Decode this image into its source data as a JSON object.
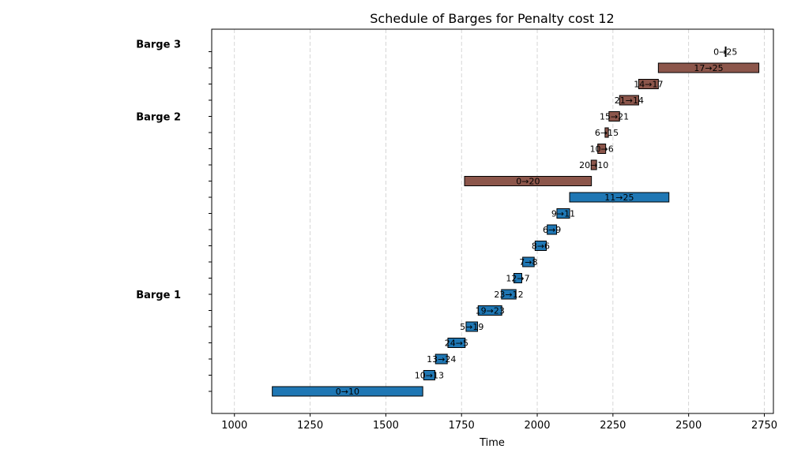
{
  "chart_data": {
    "type": "gantt",
    "title": "Schedule of Barges for Penalty cost 12",
    "xlabel": "Time",
    "ylabel": "",
    "xlim": [
      925,
      2780
    ],
    "xticks": [
      1000,
      1250,
      1500,
      1750,
      2000,
      2250,
      2500,
      2750
    ],
    "grid": "x-dashed",
    "colors": {
      "Barge 1": "#1f77b4",
      "Barge 2": "#8c564b",
      "Barge 3": "#8c564b"
    },
    "groups": [
      {
        "label": "Barge 1",
        "row": 6
      },
      {
        "label": "Barge 2",
        "row": 17
      },
      {
        "label": "Barge 3",
        "row": 21.5
      }
    ],
    "tasks": [
      {
        "label": "0→10",
        "barge": "Barge 1",
        "row": 0,
        "start": 1125,
        "end": 1622
      },
      {
        "label": "10→13",
        "barge": "Barge 1",
        "row": 1,
        "start": 1625,
        "end": 1662
      },
      {
        "label": "13→24",
        "barge": "Barge 1",
        "row": 2,
        "start": 1664,
        "end": 1703
      },
      {
        "label": "24→5",
        "barge": "Barge 1",
        "row": 3,
        "start": 1705,
        "end": 1762
      },
      {
        "label": "5→19",
        "barge": "Barge 1",
        "row": 4,
        "start": 1765,
        "end": 1803
      },
      {
        "label": "19→23",
        "barge": "Barge 1",
        "row": 5,
        "start": 1805,
        "end": 1883
      },
      {
        "label": "23→12",
        "barge": "Barge 1",
        "row": 6,
        "start": 1882,
        "end": 1930
      },
      {
        "label": "12→7",
        "barge": "Barge 1",
        "row": 7,
        "start": 1923,
        "end": 1949
      },
      {
        "label": "7→8",
        "barge": "Barge 1",
        "row": 8,
        "start": 1952,
        "end": 1990
      },
      {
        "label": "8→6",
        "barge": "Barge 1",
        "row": 9,
        "start": 1993,
        "end": 2030
      },
      {
        "label": "6→9",
        "barge": "Barge 1",
        "row": 10,
        "start": 2033,
        "end": 2064
      },
      {
        "label": "9→11",
        "barge": "Barge 1",
        "row": 11,
        "start": 2065,
        "end": 2107
      },
      {
        "label": "11→25",
        "barge": "Barge 1",
        "row": 12,
        "start": 2107,
        "end": 2435
      },
      {
        "label": "0→20",
        "barge": "Barge 2",
        "row": 13,
        "start": 1760,
        "end": 2179
      },
      {
        "label": "20→10",
        "barge": "Barge 2",
        "row": 14,
        "start": 2178,
        "end": 2196
      },
      {
        "label": "10→6",
        "barge": "Barge 2",
        "row": 15,
        "start": 2200,
        "end": 2226
      },
      {
        "label": "6→15",
        "barge": "Barge 2",
        "row": 16,
        "start": 2224,
        "end": 2235
      },
      {
        "label": "15→21",
        "barge": "Barge 2",
        "row": 17,
        "start": 2237,
        "end": 2272
      },
      {
        "label": "21→14",
        "barge": "Barge 2",
        "row": 18,
        "start": 2272,
        "end": 2335
      },
      {
        "label": "14→17",
        "barge": "Barge 2",
        "row": 19,
        "start": 2335,
        "end": 2400
      },
      {
        "label": "17→25",
        "barge": "Barge 3",
        "row": 20,
        "start": 2400,
        "end": 2732
      },
      {
        "label": "0→25",
        "barge": "Barge 3",
        "row": 21,
        "start": 2621,
        "end": 2622
      }
    ]
  }
}
